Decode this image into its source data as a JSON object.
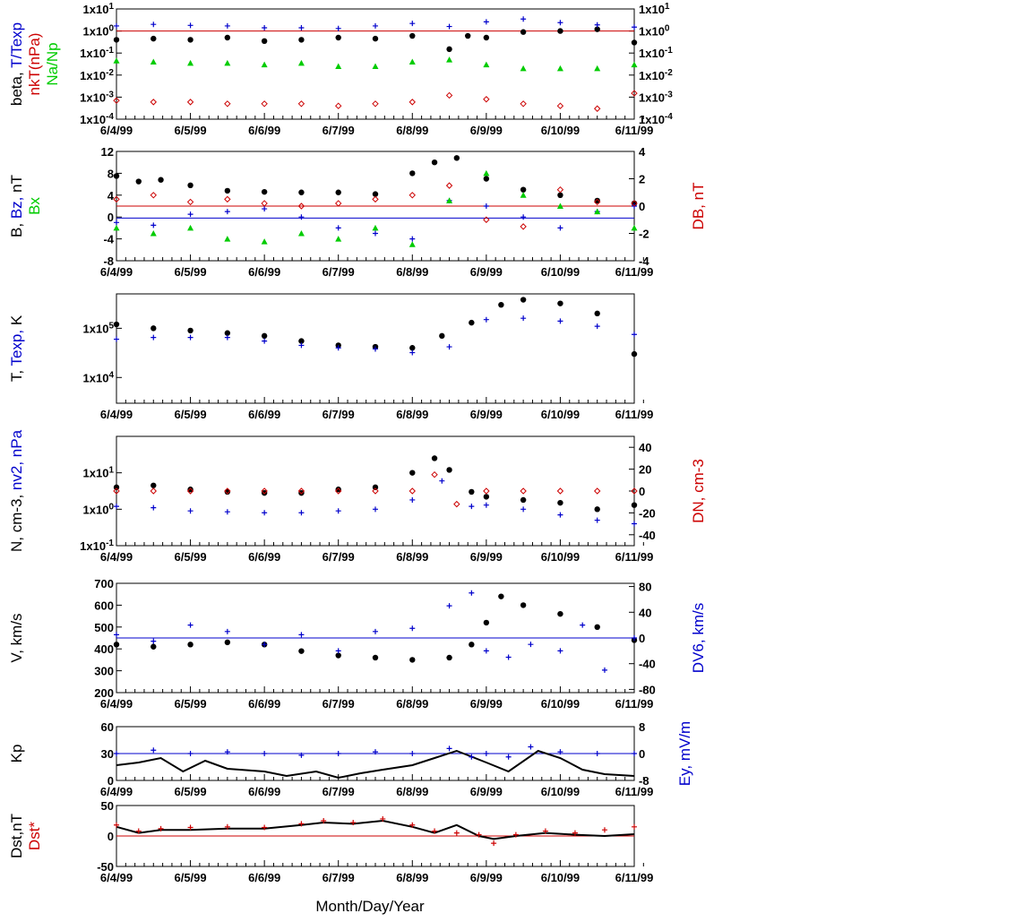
{
  "chart_data": [
    {
      "type": "scatter",
      "ylabel": [
        "beta,",
        "T/Texp"
      ],
      "ylabel2": [
        "nkT(nPa)"
      ],
      "ylabel3": [
        "Na/Np"
      ],
      "yscale": "log",
      "ylim": [
        0.0001,
        10
      ],
      "yticks": [
        "1x10-4",
        "1x10-3",
        "1x10-2",
        "1x10-1",
        "1x100",
        "1x101"
      ],
      "yticks_right": [
        "1x10-4",
        "1x10-3",
        "1x10-2",
        "1x10-1",
        "1x100",
        "1x101"
      ],
      "hline": 1,
      "series": [
        {
          "name": "beta",
          "color": "#000000",
          "marker": "dot",
          "x": [
            0,
            0.5,
            1,
            1.5,
            2,
            2.5,
            3,
            3.5,
            4,
            4.5,
            4.75,
            5,
            5.5,
            6,
            6.5,
            7
          ],
          "y": [
            0.4,
            0.45,
            0.4,
            0.5,
            0.35,
            0.4,
            0.5,
            0.45,
            0.6,
            0.15,
            0.6,
            0.5,
            0.9,
            1.0,
            1.2,
            0.3
          ]
        },
        {
          "name": "T/Texp",
          "color": "#0000cc",
          "marker": "plus",
          "x": [
            0,
            0.5,
            1,
            1.5,
            2,
            2.5,
            3,
            3.5,
            4,
            4.5,
            5,
            5.5,
            6,
            6.5,
            7
          ],
          "y": [
            1.7,
            2.0,
            1.8,
            1.7,
            1.4,
            1.4,
            1.3,
            1.7,
            2.2,
            1.6,
            2.6,
            3.5,
            2.4,
            1.9,
            1.5
          ]
        },
        {
          "name": "nkT(nPa)",
          "color": "#cc0000",
          "marker": "diamond",
          "x": [
            0,
            0.5,
            1,
            1.5,
            2,
            2.5,
            3,
            3.5,
            4,
            4.5,
            5,
            5.5,
            6,
            6.5,
            7
          ],
          "y": [
            0.0007,
            0.0006,
            0.0006,
            0.0005,
            0.0005,
            0.0005,
            0.0004,
            0.0005,
            0.0006,
            0.0012,
            0.0008,
            0.0005,
            0.0004,
            0.0003,
            0.0015
          ]
        },
        {
          "name": "Na/Np",
          "color": "#00cc00",
          "marker": "triangle",
          "x": [
            0,
            0.5,
            1,
            1.5,
            2,
            2.5,
            3,
            3.5,
            4,
            4.5,
            5,
            5.5,
            6,
            6.5,
            7
          ],
          "y": [
            0.045,
            0.04,
            0.035,
            0.035,
            0.03,
            0.035,
            0.025,
            0.025,
            0.04,
            0.05,
            0.03,
            0.02,
            0.02,
            0.02,
            0.03
          ]
        }
      ]
    },
    {
      "type": "scatter",
      "ylabel": [
        "B,",
        "Bz,",
        "nT"
      ],
      "ylabel2": [
        "Bx"
      ],
      "ylabel_right": "DB, nT",
      "ylim": [
        -8,
        12
      ],
      "yticks": [
        "-8",
        "-4",
        "0",
        "4",
        "8",
        "12"
      ],
      "ylim_right": [
        -4,
        4
      ],
      "yticks_right": [
        "-4",
        "-2",
        "0",
        "2",
        "4"
      ],
      "hline": -0.2,
      "hline2": 2,
      "series": [
        {
          "name": "B",
          "color": "#000000",
          "marker": "dot",
          "x": [
            0,
            0.3,
            0.6,
            1,
            1.5,
            2,
            2.5,
            3,
            3.5,
            4,
            4.3,
            4.6,
            5,
            5.5,
            6,
            6.5,
            7
          ],
          "y": [
            7.5,
            6.5,
            6.8,
            5.8,
            4.8,
            4.6,
            4.5,
            4.5,
            4.2,
            8.0,
            10.0,
            10.8,
            7.0,
            5.0,
            4.0,
            3.0,
            2.5
          ]
        },
        {
          "name": "Bz",
          "color": "#0000cc",
          "marker": "plus",
          "x": [
            0,
            0.5,
            1,
            1.5,
            2,
            2.5,
            3,
            3.5,
            4,
            4.5,
            5,
            5.5,
            6,
            6.5,
            7
          ],
          "y": [
            -1,
            -1.5,
            0.5,
            1,
            1.5,
            0,
            -2,
            -3,
            -4,
            3,
            2,
            0,
            -2,
            1,
            2
          ]
        },
        {
          "name": "Bx",
          "color": "#00cc00",
          "marker": "triangle",
          "x": [
            0,
            0.5,
            1,
            1.5,
            2,
            2.5,
            3,
            3.5,
            4,
            4.5,
            5,
            5.5,
            6,
            6.5,
            7
          ],
          "y": [
            -2,
            -3,
            -2,
            -4,
            -4.5,
            -3,
            -4,
            -2,
            -5,
            3,
            8,
            4,
            2,
            1,
            -2
          ]
        },
        {
          "name": "DB",
          "color": "#cc0000",
          "marker": "diamond",
          "x": [
            0,
            0.5,
            1,
            1.5,
            2,
            2.5,
            3,
            3.5,
            4,
            4.5,
            5,
            5.5,
            6,
            6.5,
            7
          ],
          "y": [
            0.5,
            0.8,
            0.3,
            0.5,
            0.2,
            0,
            0.2,
            0.5,
            0.8,
            1.5,
            -1.0,
            -1.5,
            1.2,
            0.3,
            0.2
          ]
        }
      ]
    },
    {
      "type": "scatter",
      "ylabel": [
        "T,",
        "Texp,",
        "K"
      ],
      "yscale": "log",
      "ylim": [
        3000,
        500000
      ],
      "yticks": [
        "1x104",
        "1x105"
      ],
      "series": [
        {
          "name": "T",
          "color": "#000000",
          "marker": "dot",
          "x": [
            0,
            0.5,
            1,
            1.5,
            2,
            2.5,
            3,
            3.5,
            4,
            4.4,
            4.8,
            5.2,
            5.5,
            6,
            6.5,
            7
          ],
          "y": [
            120000,
            100000,
            90000,
            80000,
            70000,
            55000,
            45000,
            42000,
            40000,
            70000,
            130000,
            300000,
            380000,
            320000,
            200000,
            30000
          ]
        },
        {
          "name": "Texp",
          "color": "#0000cc",
          "marker": "plus",
          "x": [
            0,
            0.5,
            1,
            1.5,
            2,
            2.5,
            3,
            3.5,
            4,
            4.5,
            5,
            5.5,
            6,
            6.5,
            7
          ],
          "y": [
            60000,
            65000,
            65000,
            65000,
            55000,
            45000,
            40000,
            38000,
            32000,
            42000,
            150000,
            160000,
            140000,
            110000,
            75000
          ]
        }
      ]
    },
    {
      "type": "scatter",
      "ylabel": [
        "N,",
        "cm-3,",
        "nv2,",
        "nPa"
      ],
      "ylabel_right": "DN, cm-3",
      "yscale": "log",
      "ylim": [
        0.1,
        100
      ],
      "yticks": [
        "1x10-1",
        "1x100",
        "1x101"
      ],
      "ylim_right": [
        -50,
        50
      ],
      "yticks_right": [
        "-40",
        "-20",
        "0",
        "20",
        "40"
      ],
      "series": [
        {
          "name": "N",
          "color": "#000000",
          "marker": "dot",
          "x": [
            0,
            0.5,
            1,
            1.5,
            2,
            2.5,
            3,
            3.5,
            4,
            4.3,
            4.5,
            4.8,
            5,
            5.5,
            6,
            6.5,
            7
          ],
          "y": [
            4,
            4.5,
            3.5,
            3,
            2.8,
            2.8,
            3.5,
            4,
            10,
            25,
            12,
            3,
            2.2,
            1.8,
            1.5,
            1.0,
            1.3
          ]
        },
        {
          "name": "nv2",
          "color": "#0000cc",
          "marker": "plus",
          "x": [
            0,
            0.5,
            1,
            1.5,
            2,
            2.5,
            3,
            3.5,
            4,
            4.4,
            4.8,
            5,
            5.5,
            6,
            6.5,
            7
          ],
          "y": [
            1.2,
            1.1,
            0.9,
            0.85,
            0.8,
            0.8,
            0.9,
            1.0,
            1.8,
            6,
            1.2,
            1.3,
            1.0,
            0.7,
            0.5,
            0.4
          ]
        },
        {
          "name": "DN",
          "color": "#cc0000",
          "marker": "diamond",
          "x": [
            0,
            0.5,
            1,
            1.5,
            2,
            2.5,
            3,
            3.5,
            4,
            4.3,
            4.6,
            5,
            5.5,
            6,
            6.5,
            7
          ],
          "y": [
            0,
            0,
            0,
            0,
            0,
            0,
            0,
            0,
            0,
            15,
            -12,
            0,
            0,
            0,
            0,
            0
          ]
        }
      ]
    },
    {
      "type": "scatter",
      "ylabel": [
        "V,",
        "km/s"
      ],
      "ylabel_right": "DV6, km/s",
      "ylim": [
        200,
        700
      ],
      "yticks": [
        "200",
        "300",
        "400",
        "500",
        "600",
        "700"
      ],
      "ylim_right": [
        -85,
        85
      ],
      "yticks_right": [
        "-80",
        "-40",
        "0",
        "40",
        "80"
      ],
      "hline": 450,
      "series": [
        {
          "name": "V",
          "color": "#000000",
          "marker": "dot",
          "x": [
            0,
            0.5,
            1,
            1.5,
            2,
            2.5,
            3,
            3.5,
            4,
            4.5,
            4.8,
            5,
            5.2,
            5.5,
            6,
            6.5,
            7
          ],
          "y": [
            420,
            410,
            420,
            430,
            420,
            390,
            370,
            360,
            350,
            360,
            420,
            520,
            640,
            600,
            560,
            500,
            440
          ]
        },
        {
          "name": "DV6",
          "color": "#0000cc",
          "marker": "plus",
          "x": [
            0,
            0.5,
            1,
            1.5,
            2,
            2.5,
            3,
            3.5,
            4,
            4.5,
            4.8,
            5,
            5.3,
            5.6,
            6,
            6.3,
            6.6,
            7
          ],
          "y": [
            5,
            -5,
            20,
            10,
            -10,
            5,
            -20,
            10,
            15,
            50,
            70,
            -20,
            -30,
            -10,
            -20,
            20,
            -50,
            0
          ]
        }
      ]
    },
    {
      "type": "line",
      "ylabel": [
        "Kp"
      ],
      "ylabel_right": "Ey,  mV/m",
      "ylim": [
        0,
        60
      ],
      "yticks": [
        "0",
        "30",
        "60"
      ],
      "ylim_right": [
        -8,
        8
      ],
      "yticks_right": [
        "-8",
        "0",
        "8"
      ],
      "hline": 30,
      "series": [
        {
          "name": "Kp",
          "color": "#000000",
          "marker": "line",
          "x": [
            0,
            0.3,
            0.6,
            0.9,
            1.2,
            1.5,
            2,
            2.3,
            2.7,
            3,
            3.3,
            3.6,
            4,
            4.3,
            4.6,
            5,
            5.3,
            5.7,
            6,
            6.3,
            6.6,
            7
          ],
          "y": [
            17,
            20,
            25,
            10,
            22,
            13,
            10,
            5,
            10,
            3,
            8,
            12,
            17,
            25,
            33,
            20,
            10,
            33,
            25,
            12,
            7,
            5
          ]
        },
        {
          "name": "Ey",
          "color": "#0000cc",
          "marker": "plus",
          "x": [
            0,
            0.5,
            1,
            1.5,
            2,
            2.5,
            3,
            3.5,
            4,
            4.5,
            4.8,
            5,
            5.3,
            5.6,
            6,
            6.5,
            7
          ],
          "y": [
            0,
            1,
            0,
            0.5,
            0,
            -0.5,
            0,
            0.5,
            0,
            1.5,
            -1,
            0,
            -1,
            2,
            0.5,
            0,
            0
          ]
        }
      ]
    },
    {
      "type": "line",
      "ylabel": [
        "Dst,nT"
      ],
      "ylabel2": [
        "Dst*"
      ],
      "ylim": [
        -50,
        50
      ],
      "yticks": [
        "-50",
        "0",
        "50"
      ],
      "hline": 0,
      "series": [
        {
          "name": "Dst",
          "color": "#000000",
          "marker": "line",
          "x": [
            0,
            0.3,
            0.6,
            1,
            1.5,
            2,
            2.5,
            2.8,
            3.2,
            3.6,
            4,
            4.3,
            4.6,
            4.9,
            5.1,
            5.4,
            5.8,
            6.2,
            6.6,
            7
          ],
          "y": [
            15,
            5,
            10,
            10,
            12,
            12,
            18,
            22,
            20,
            25,
            15,
            5,
            18,
            0,
            -5,
            0,
            5,
            2,
            0,
            3
          ]
        },
        {
          "name": "Dst*",
          "color": "#cc0000",
          "marker": "plus",
          "x": [
            0,
            0.3,
            0.6,
            1,
            1.5,
            2,
            2.5,
            2.8,
            3.2,
            3.6,
            4,
            4.3,
            4.6,
            4.9,
            5.1,
            5.4,
            5.8,
            6.2,
            6.6,
            7
          ],
          "y": [
            18,
            8,
            12,
            14,
            15,
            14,
            20,
            25,
            22,
            28,
            18,
            8,
            5,
            2,
            -12,
            2,
            8,
            5,
            10,
            15
          ]
        }
      ]
    }
  ],
  "x_tick_labels": [
    "6/4/99",
    "6/5/99",
    "6/6/99",
    "6/7/99",
    "6/8/99",
    "6/9/99",
    "6/10/99",
    "6/11/99"
  ],
  "x_title": "Month/Day/Year"
}
